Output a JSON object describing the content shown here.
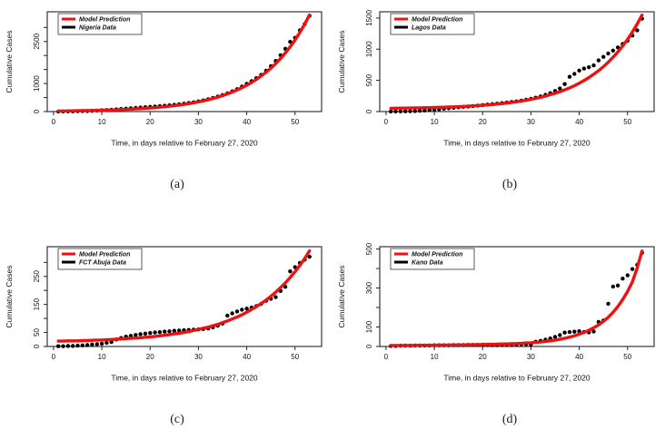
{
  "colors": {
    "model_line": "#ee1111",
    "data_points": "#000000",
    "axis": "#222222",
    "text": "#111111",
    "legend_border": "#333333",
    "background": "#ffffff"
  },
  "chart_data": [
    {
      "type": "line",
      "caption": "(a)",
      "region": "Nigeria",
      "xlabel": "Time, in days relative to February 27, 2020",
      "ylabel": "Cumulative Cases",
      "legend_position": "top-left",
      "grid": false,
      "legend": [
        {
          "name": "Model Prediction",
          "color": "#ee1111"
        },
        {
          "name": "Nigeria Data",
          "color": "#000000"
        }
      ],
      "xlim": [
        -1.3,
        55.5
      ],
      "ylim": [
        0,
        3560
      ],
      "xticks": [
        0,
        10,
        20,
        30,
        40,
        50
      ],
      "yticks": [
        {
          "v": 0,
          "label": "0"
        },
        {
          "v": 500,
          "label": ""
        },
        {
          "v": 1000,
          "label": "1000"
        },
        {
          "v": 1500,
          "label": ""
        },
        {
          "v": 2000,
          "label": ""
        },
        {
          "v": 2500,
          "label": "2500"
        },
        {
          "v": 3000,
          "label": ""
        }
      ],
      "x": [
        1,
        2,
        3,
        4,
        5,
        6,
        7,
        8,
        9,
        10,
        11,
        12,
        13,
        14,
        15,
        16,
        17,
        18,
        19,
        20,
        21,
        22,
        23,
        24,
        25,
        26,
        27,
        28,
        29,
        30,
        31,
        32,
        33,
        34,
        35,
        36,
        37,
        38,
        39,
        40,
        41,
        42,
        43,
        44,
        45,
        46,
        47,
        48,
        49,
        50,
        51,
        52,
        53
      ],
      "series": [
        {
          "name": "Model Prediction",
          "type": "line",
          "values": [
            19,
            21,
            23,
            26,
            28,
            31,
            35,
            38,
            42,
            47,
            52,
            57,
            63,
            70,
            77,
            85,
            94,
            104,
            115,
            127,
            140,
            155,
            172,
            190,
            210,
            232,
            256,
            283,
            313,
            345,
            382,
            422,
            466,
            515,
            570,
            629,
            696,
            769,
            850,
            939,
            1038,
            1147,
            1268,
            1401,
            1548,
            1711,
            1891,
            2090,
            2310,
            2553,
            2821,
            3118,
            3446
          ]
        },
        {
          "name": "Nigeria Data",
          "type": "scatter",
          "values": [
            2,
            3,
            5,
            8,
            12,
            16,
            21,
            27,
            35,
            44,
            54,
            65,
            78,
            92,
            105,
            118,
            131,
            143,
            155,
            168,
            181,
            194,
            208,
            223,
            240,
            259,
            281,
            305,
            331,
            362,
            398,
            439,
            484,
            534,
            590,
            652,
            722,
            801,
            890,
            990,
            1085,
            1190,
            1308,
            1455,
            1620,
            1805,
            2010,
            2240,
            2490,
            2630,
            2900,
            3120,
            3420
          ]
        }
      ]
    },
    {
      "type": "line",
      "caption": "(b)",
      "region": "Lagos",
      "xlabel": "Time, in days relative to February 27, 2020",
      "ylabel": "Cumulative Cases",
      "legend_position": "top-left",
      "grid": false,
      "legend": [
        {
          "name": "Model Prediction",
          "color": "#ee1111"
        },
        {
          "name": "Lagos Data",
          "color": "#000000"
        }
      ],
      "xlim": [
        -1.3,
        55.5
      ],
      "ylim": [
        0,
        1600
      ],
      "xticks": [
        0,
        10,
        20,
        30,
        40,
        50
      ],
      "yticks": [
        {
          "v": 0,
          "label": "0"
        },
        {
          "v": 500,
          "label": "500"
        },
        {
          "v": 1000,
          "label": "1000"
        },
        {
          "v": 1500,
          "label": "1500"
        }
      ],
      "x": [
        1,
        2,
        3,
        4,
        5,
        6,
        7,
        8,
        9,
        10,
        11,
        12,
        13,
        14,
        15,
        16,
        17,
        18,
        19,
        20,
        21,
        22,
        23,
        24,
        25,
        26,
        27,
        28,
        29,
        30,
        31,
        32,
        33,
        34,
        35,
        36,
        37,
        38,
        39,
        40,
        41,
        42,
        43,
        44,
        45,
        46,
        47,
        48,
        49,
        50,
        51,
        52,
        53
      ],
      "series": [
        {
          "name": "Model Prediction",
          "type": "line",
          "values": [
            53,
            54,
            55,
            56,
            57,
            59,
            60,
            62,
            63,
            65,
            68,
            70,
            73,
            75,
            79,
            82,
            86,
            90,
            95,
            100,
            106,
            113,
            120,
            128,
            136,
            146,
            157,
            168,
            181,
            196,
            211,
            229,
            248,
            270,
            293,
            319,
            348,
            380,
            415,
            455,
            498,
            545,
            598,
            656,
            720,
            791,
            870,
            956,
            1052,
            1158,
            1275,
            1404,
            1547
          ]
        },
        {
          "name": "Lagos Data",
          "type": "scatter",
          "values": [
            1,
            2,
            3,
            4,
            6,
            9,
            13,
            18,
            24,
            30,
            38,
            46,
            54,
            61,
            68,
            75,
            82,
            89,
            96,
            104,
            112,
            119,
            127,
            135,
            144,
            154,
            163,
            174,
            189,
            204,
            222,
            243,
            267,
            296,
            330,
            370,
            441,
            557,
            603,
            657,
            689,
            711,
            740,
            820,
            877,
            931,
            977,
            1029,
            1084,
            1136,
            1219,
            1303,
            1489
          ]
        }
      ]
    },
    {
      "type": "line",
      "caption": "(c)",
      "region": "FCT Abuja",
      "xlabel": "Time, in days relative to February 27, 2020",
      "ylabel": "Cumulative Cases",
      "legend_position": "top-left",
      "grid": false,
      "legend": [
        {
          "name": "Model Prediction",
          "color": "#ee1111"
        },
        {
          "name": "FCT Abuja Data",
          "color": "#000000"
        }
      ],
      "xlim": [
        -1.3,
        55.5
      ],
      "ylim": [
        0,
        356
      ],
      "xticks": [
        0,
        10,
        20,
        30,
        40,
        50
      ],
      "yticks": [
        {
          "v": 0,
          "label": "0"
        },
        {
          "v": 50,
          "label": "50"
        },
        {
          "v": 100,
          "label": ""
        },
        {
          "v": 150,
          "label": "150"
        },
        {
          "v": 200,
          "label": ""
        },
        {
          "v": 250,
          "label": "250"
        },
        {
          "v": 300,
          "label": ""
        }
      ],
      "x": [
        1,
        2,
        3,
        4,
        5,
        6,
        7,
        8,
        9,
        10,
        11,
        12,
        13,
        14,
        15,
        16,
        17,
        18,
        19,
        20,
        21,
        22,
        23,
        24,
        25,
        26,
        27,
        28,
        29,
        30,
        31,
        32,
        33,
        34,
        35,
        36,
        37,
        38,
        39,
        40,
        41,
        42,
        43,
        44,
        45,
        46,
        47,
        48,
        49,
        50,
        51,
        52,
        53
      ],
      "series": [
        {
          "name": "Model Prediction",
          "type": "line",
          "values": [
            19,
            19,
            20,
            20,
            20,
            21,
            21,
            22,
            23,
            23,
            24,
            25,
            26,
            27,
            28,
            29,
            30,
            31,
            33,
            34,
            36,
            38,
            40,
            42,
            45,
            47,
            50,
            53,
            57,
            61,
            65,
            69,
            74,
            79,
            85,
            91,
            98,
            105,
            113,
            122,
            132,
            142,
            153,
            166,
            179,
            194,
            210,
            227,
            246,
            267,
            289,
            314,
            341
          ]
        },
        {
          "name": "FCT Abuja Data",
          "type": "scatter",
          "values": [
            1,
            1,
            2,
            2,
            3,
            4,
            5,
            7,
            8,
            10,
            13,
            16,
            25,
            30,
            35,
            38,
            41,
            44,
            46,
            48,
            50,
            51,
            53,
            54,
            56,
            57,
            58,
            59,
            60,
            61,
            62,
            64,
            68,
            74,
            82,
            110,
            118,
            125,
            131,
            135,
            139,
            144,
            152,
            163,
            170,
            176,
            198,
            213,
            268,
            283,
            298,
            310,
            320
          ]
        }
      ]
    },
    {
      "type": "line",
      "caption": "(d)",
      "region": "Kano",
      "xlabel": "Time, in days relative to February 27, 2020",
      "ylabel": "Cumulative Cases",
      "legend_position": "top-left",
      "grid": false,
      "legend": [
        {
          "name": "Model Prediction",
          "color": "#ee1111"
        },
        {
          "name": "Kano Data",
          "color": "#000000"
        }
      ],
      "xlim": [
        -1.3,
        55.5
      ],
      "ylim": [
        0,
        512
      ],
      "xticks": [
        0,
        10,
        20,
        30,
        40,
        50
      ],
      "yticks": [
        {
          "v": 0,
          "label": "0"
        },
        {
          "v": 100,
          "label": "100"
        },
        {
          "v": 200,
          "label": ""
        },
        {
          "v": 300,
          "label": "300"
        },
        {
          "v": 400,
          "label": ""
        },
        {
          "v": 500,
          "label": "500"
        }
      ],
      "x": [
        1,
        2,
        3,
        4,
        5,
        6,
        7,
        8,
        9,
        10,
        11,
        12,
        13,
        14,
        15,
        16,
        17,
        18,
        19,
        20,
        21,
        22,
        23,
        24,
        25,
        26,
        27,
        28,
        29,
        30,
        31,
        32,
        33,
        34,
        35,
        36,
        37,
        38,
        39,
        40,
        41,
        42,
        43,
        44,
        45,
        46,
        47,
        48,
        49,
        50,
        51,
        52,
        53
      ],
      "series": [
        {
          "name": "Model Prediction",
          "type": "line",
          "values": [
            5,
            5,
            5,
            5,
            5,
            5,
            6,
            6,
            6,
            6,
            7,
            7,
            7,
            8,
            8,
            8,
            9,
            9,
            10,
            10,
            11,
            11,
            12,
            13,
            13,
            14,
            15,
            16,
            18,
            19,
            21,
            23,
            26,
            29,
            33,
            37,
            42,
            48,
            55,
            63,
            72,
            83,
            96,
            111,
            129,
            150,
            175,
            205,
            240,
            282,
            332,
            402,
            490
          ]
        },
        {
          "name": "Kano Data",
          "type": "scatter",
          "values": [
            3,
            3,
            4,
            4,
            4,
            5,
            5,
            5,
            5,
            6,
            6,
            6,
            6,
            7,
            7,
            7,
            8,
            8,
            8,
            9,
            9,
            7,
            7,
            8,
            8,
            9,
            9,
            11,
            11,
            10,
            24,
            29,
            35,
            41,
            49,
            58,
            71,
            74,
            76,
            78,
            74,
            72,
            77,
            126,
            133,
            219,
            307,
            313,
            348,
            365,
            397,
            419,
            481
          ]
        }
      ]
    }
  ]
}
